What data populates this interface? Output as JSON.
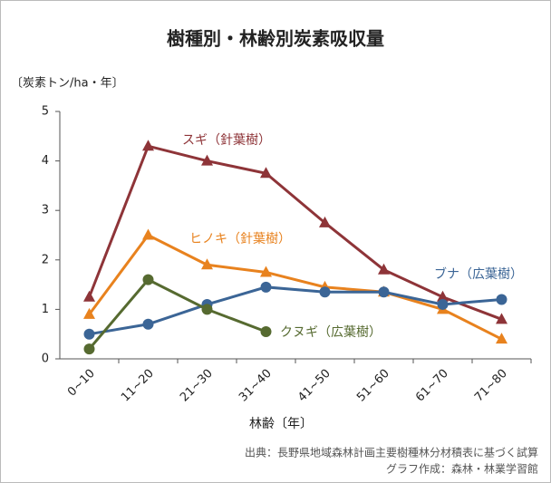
{
  "chart_data": {
    "type": "line",
    "title": "樹種別・林齢別炭素吸収量",
    "y_label": "〔炭素トン/ha・年〕",
    "x_label": "林齢〔年〕",
    "source": [
      "出典：長野県地域森林計画主要樹種林分材積表に基づく試算",
      "グラフ作成：森林・林業学習館"
    ],
    "categories": [
      "0~10",
      "11~20",
      "21~30",
      "31~40",
      "41~50",
      "51~60",
      "61~70",
      "71~80"
    ],
    "series": [
      {
        "name": "スギ（針葉樹）",
        "color": "#8e3438",
        "marker": "triangle",
        "values": [
          1.25,
          4.3,
          4.0,
          3.75,
          2.75,
          1.8,
          1.25,
          0.8
        ]
      },
      {
        "name": "ヒノキ（針葉樹）",
        "color": "#e8821e",
        "marker": "triangle",
        "values": [
          0.9,
          2.5,
          1.9,
          1.75,
          1.45,
          1.35,
          1.0,
          0.4
        ]
      },
      {
        "name": "ブナ（広葉樹）",
        "color": "#3b6596",
        "marker": "circle",
        "values": [
          0.5,
          0.7,
          1.1,
          1.45,
          1.35,
          1.35,
          1.1,
          1.2
        ]
      },
      {
        "name": "クヌギ（広葉樹）",
        "color": "#566a30",
        "marker": "circle",
        "values": [
          0.2,
          1.6,
          1.0,
          0.55,
          null,
          null,
          null,
          null
        ]
      }
    ],
    "ylim": [
      0,
      5
    ],
    "yticks": [
      0,
      1,
      2,
      3,
      4,
      5
    ]
  }
}
